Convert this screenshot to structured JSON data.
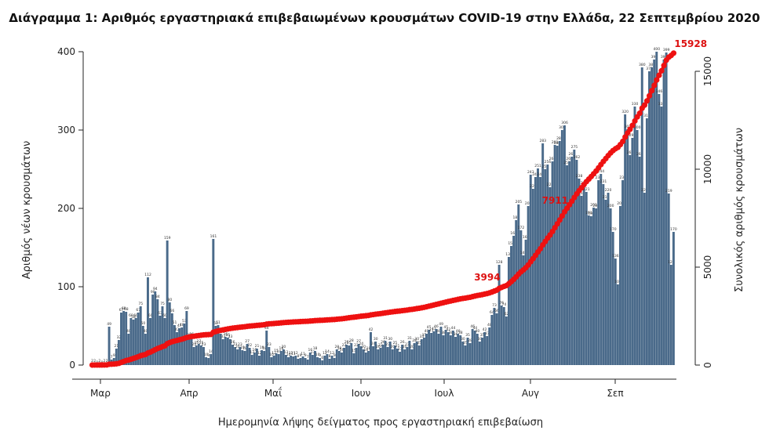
{
  "chart_data": {
    "type": "bar",
    "title": "Διάγραμμα 1: Αριθμός εργαστηριακά επιβεβαιωμένων κρουσμάτων COVID-19 στην Ελλάδα, 22 Σεπτεμβρίου 2020",
    "xlabel": "Ημερομηνία λήψης δείγματος προς εργαστηριακή επιβεβαίωση",
    "ylabel": "Αριθμός νέων κρουσμάτων",
    "y2label": "Συνολικός αριθμός κρουσμάτων",
    "ylim": [
      0,
      400
    ],
    "y2lim": [
      0,
      16000
    ],
    "yticks": [
      0,
      100,
      200,
      300,
      400
    ],
    "y2ticks": [
      0,
      5000,
      10000,
      15000
    ],
    "xticks": [
      "Μαρ",
      "Απρ",
      "Μαΐ",
      "Ιουν",
      "Ιουλ",
      "Αυγ",
      "Σεπ"
    ],
    "grid": false,
    "series": [
      {
        "name": "",
        "type": "bar",
        "color": "#4a6a8a",
        "values": [
          2,
          2,
          0,
          2,
          0,
          2,
          2,
          49,
          7,
          9,
          21,
          32,
          67,
          69,
          68,
          40,
          60,
          58,
          60,
          67,
          75,
          50,
          40,
          112,
          60,
          90,
          94,
          84,
          63,
          75,
          60,
          159,
          80,
          66,
          51,
          42,
          47,
          48,
          53,
          69,
          35,
          36,
          23,
          25,
          27,
          25,
          23,
          10,
          9,
          14,
          161,
          50,
          51,
          40,
          33,
          36,
          35,
          33,
          26,
          23,
          20,
          23,
          19,
          18,
          27,
          22,
          13,
          16,
          21,
          12,
          19,
          18,
          44,
          23,
          10,
          12,
          15,
          14,
          18,
          20,
          13,
          10,
          12,
          11,
          12,
          8,
          9,
          11,
          9,
          7,
          16,
          13,
          18,
          10,
          9,
          6,
          12,
          14,
          8,
          12,
          9,
          20,
          18,
          16,
          22,
          26,
          25,
          28,
          15,
          22,
          27,
          24,
          20,
          16,
          18,
          42,
          24,
          30,
          20,
          22,
          26,
          31,
          23,
          30,
          20,
          25,
          21,
          17,
          26,
          20,
          23,
          31,
          20,
          28,
          30,
          25,
          33,
          35,
          40,
          45,
          41,
          43,
          46,
          40,
          49,
          38,
          45,
          42,
          38,
          44,
          36,
          40,
          38,
          30,
          25,
          35,
          28,
          46,
          44,
          40,
          30,
          35,
          42,
          37,
          48,
          64,
          73,
          66,
          128,
          76,
          74,
          62,
          138,
          152,
          165,
          185,
          205,
          172,
          140,
          160,
          203,
          243,
          225,
          240,
          251,
          240,
          283,
          250,
          256,
          227,
          260,
          281,
          280,
          286,
          300,
          306,
          255,
          260,
          266,
          275,
          262,
          238,
          216,
          229,
          221,
          191,
          190,
          201,
          200,
          236,
          244,
          231,
          211,
          220,
          200,
          170,
          136,
          103,
          203,
          236,
          320,
          301,
          268,
          290,
          330,
          300,
          266,
          380,
          220,
          315,
          375,
          380,
          390,
          400,
          346,
          330,
          390,
          399,
          219,
          128,
          170
        ],
        "labels": [
          2,
          2,
          0,
          2,
          0,
          2,
          2,
          49,
          7,
          9,
          21,
          32,
          67,
          69,
          68,
          40,
          60,
          58,
          60,
          67,
          75,
          50,
          40,
          112,
          60,
          90,
          94,
          84,
          63,
          75,
          60,
          159,
          80,
          66,
          51,
          42,
          47,
          48,
          53,
          69,
          35,
          36,
          23,
          25,
          27,
          25,
          23,
          10,
          9,
          14,
          161,
          50,
          51,
          40,
          33,
          36,
          35,
          33,
          26,
          23,
          20,
          23,
          19,
          18,
          27,
          22,
          13,
          16,
          21,
          12,
          19,
          18,
          44,
          23,
          10,
          12,
          15,
          14,
          18,
          20,
          13,
          10,
          12,
          11,
          12,
          8,
          9,
          11,
          9,
          7,
          16,
          13,
          18,
          10,
          9,
          6,
          12,
          14,
          8,
          12,
          9,
          20,
          18,
          16,
          22,
          26,
          25,
          28,
          15,
          22,
          27,
          24,
          20,
          16,
          18,
          42,
          24,
          30,
          20,
          22,
          26,
          31,
          23,
          30,
          20,
          25,
          21,
          17,
          26,
          20,
          23,
          31,
          20,
          28,
          30,
          25,
          33,
          35,
          40,
          45,
          41,
          43,
          46,
          40,
          49,
          38,
          45,
          42,
          38,
          44,
          36,
          40,
          38,
          30,
          25,
          35,
          28,
          46,
          44,
          40,
          30,
          35,
          42,
          37,
          48,
          64,
          73,
          66,
          128,
          76,
          74,
          62,
          138,
          152,
          165,
          185,
          205,
          172,
          140,
          160,
          203,
          243,
          225,
          240,
          251,
          240,
          283,
          250,
          256,
          227,
          260,
          281,
          280,
          286,
          300,
          306,
          255,
          260,
          266,
          275,
          262,
          238,
          216,
          229,
          221,
          191,
          190,
          201,
          200,
          236,
          244,
          231,
          211,
          220,
          200,
          170,
          136,
          103,
          203,
          236,
          320,
          301,
          268,
          290,
          330,
          300,
          266,
          380,
          220,
          315,
          375,
          380,
          390,
          400,
          346,
          330,
          390,
          399,
          219,
          128,
          170
        ]
      },
      {
        "name": "",
        "type": "line",
        "axis": "right",
        "color": "#ee1111"
      }
    ],
    "annotations": [
      {
        "text": "3994",
        "index": 165,
        "value": 3994
      },
      {
        "text": "7911",
        "index": 193,
        "value": 7911
      },
      {
        "text": "15928",
        "index": 249,
        "value": 15928
      }
    ]
  }
}
